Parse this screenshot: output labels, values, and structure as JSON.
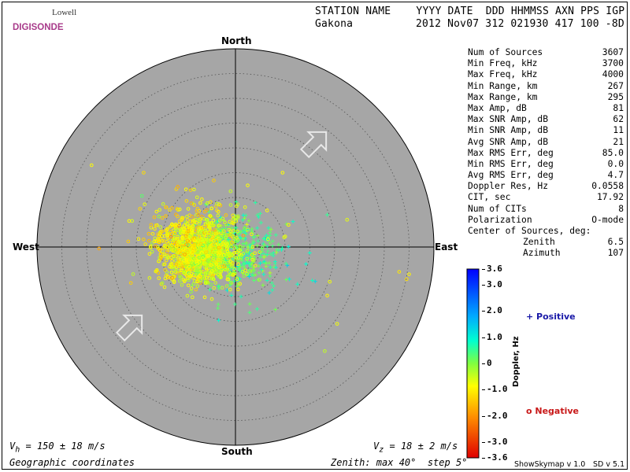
{
  "logo": {
    "line1": "Lowell",
    "line2": "DIGISONDE"
  },
  "header": {
    "labels": "STATION NAME    YYYY DATE  DDD HHMMSS AXN PPS IGP",
    "station": "Gakona",
    "values": "2012 Nov07 312 021930 417 100 -8D"
  },
  "directions": {
    "north": "North",
    "south": "South",
    "east": "East",
    "west": "West"
  },
  "stats": [
    {
      "label": "Num of Sources",
      "value": "3607"
    },
    {
      "label": "Min Freq, kHz",
      "value": "3700"
    },
    {
      "label": "Max Freq, kHz",
      "value": "4000"
    },
    {
      "label": "Min Range, km",
      "value": "267"
    },
    {
      "label": "Max Range, km",
      "value": "295"
    },
    {
      "label": "Max Amp, dB",
      "value": "81"
    },
    {
      "label": "Max SNR Amp, dB",
      "value": "62"
    },
    {
      "label": "Min SNR Amp, dB",
      "value": "11"
    },
    {
      "label": "Avg SNR Amp, dB",
      "value": "21"
    },
    {
      "label": "Max RMS Err, deg",
      "value": "85.0"
    },
    {
      "label": "Min RMS Err, deg",
      "value": "0.0"
    },
    {
      "label": "Avg RMS Err, deg",
      "value": "4.7"
    },
    {
      "label": "Doppler Res, Hz",
      "value": "0.0558"
    },
    {
      "label": "CIT, sec",
      "value": "17.92"
    },
    {
      "label": "Num of CITs",
      "value": "8"
    },
    {
      "label": "Polarization",
      "value": "O-mode"
    }
  ],
  "center": {
    "label": "Center of Sources, deg:",
    "zenith_label": "Zenith",
    "zenith_value": "6.5",
    "azimuth_label": "Azimuth",
    "azimuth_value": "107"
  },
  "colorbar": {
    "title": "Doppler, Hz",
    "ticks": [
      "3.6",
      "3.0",
      "2.0",
      "1.0",
      "0",
      "-1.0",
      "-2.0",
      "-3.0",
      "-3.6"
    ],
    "tick_values": [
      3.6,
      3.0,
      2.0,
      1.0,
      0,
      -1.0,
      -2.0,
      -3.0,
      -3.6
    ],
    "range": [
      -3.6,
      3.6
    ]
  },
  "legend": {
    "positive": "+ Positive",
    "negative": "o Negative"
  },
  "footer": {
    "vh": "V",
    "vh_sub": "h",
    "vh_rest": " = 150 ± 18 m/s",
    "vz": "V",
    "vz_sub": "z",
    "vz_rest": " = 18 ± 2 m/s",
    "coords": "Geographic coordinates",
    "zenith": "Zenith: max 40°  step 5°",
    "credit1": "ShowSkymap v 1.0",
    "credit2": "SD v 5.1"
  },
  "chart_data": {
    "type": "scatter",
    "coordinate_system": "polar",
    "zenith_max_deg": 40,
    "zenith_step_deg": 5,
    "center_of_sources": {
      "zenith_deg": 6.5,
      "azimuth_deg": 107
    },
    "series": [
      {
        "name": "Positive",
        "marker": "+",
        "clusters": [
          {
            "center_east_deg": -1.0,
            "center_north_deg": -0.5,
            "spread_deg": 4,
            "count": 220,
            "doppler_mean": 0.3
          },
          {
            "center_east_deg": 2.5,
            "center_north_deg": -2.0,
            "spread_deg": 5,
            "count": 150,
            "doppler_mean": 0.6
          },
          {
            "center_east_deg": -4.0,
            "center_north_deg": 1.5,
            "spread_deg": 3,
            "count": 60,
            "doppler_mean": -0.2
          }
        ]
      },
      {
        "name": "Negative",
        "marker": "o",
        "clusters": [
          {
            "center_east_deg": -9.0,
            "center_north_deg": -1.0,
            "spread_deg": 3.5,
            "count": 650,
            "doppler_mean": -1.0
          },
          {
            "center_east_deg": -5.0,
            "center_north_deg": -2.0,
            "spread_deg": 3.5,
            "count": 400,
            "doppler_mean": -0.6
          },
          {
            "center_east_deg": -11.0,
            "center_north_deg": 3.0,
            "spread_deg": 4.5,
            "count": 160,
            "doppler_mean": -1.2
          },
          {
            "center_east_deg": -3.0,
            "center_north_deg": 3.0,
            "spread_deg": 5,
            "count": 80,
            "doppler_mean": -0.8
          }
        ]
      }
    ],
    "outliers": [
      {
        "east_deg": -29.0,
        "north_deg": 16.5,
        "doppler": -1.0,
        "marker": "o"
      },
      {
        "east_deg": -18.5,
        "north_deg": 15.0,
        "doppler": -1.3,
        "marker": "o"
      },
      {
        "east_deg": -27.5,
        "north_deg": -0.3,
        "doppler": -1.8,
        "marker": "o"
      },
      {
        "east_deg": 19.0,
        "north_deg": -7.0,
        "doppler": -0.9,
        "marker": "o"
      },
      {
        "east_deg": 18.5,
        "north_deg": -9.8,
        "doppler": -1.1,
        "marker": "o"
      },
      {
        "east_deg": 33.0,
        "north_deg": -5.0,
        "doppler": -1.2,
        "marker": "o"
      },
      {
        "east_deg": 34.5,
        "north_deg": -6.5,
        "doppler": -1.3,
        "marker": "o"
      },
      {
        "east_deg": 35.0,
        "north_deg": -5.5,
        "doppler": -1.1,
        "marker": "o"
      },
      {
        "east_deg": 22.5,
        "north_deg": 5.5,
        "doppler": -0.8,
        "marker": "o"
      },
      {
        "east_deg": 20.5,
        "north_deg": -15.5,
        "doppler": -0.9,
        "marker": "o"
      },
      {
        "east_deg": 18.0,
        "north_deg": -21.0,
        "doppler": -0.5,
        "marker": "o"
      },
      {
        "east_deg": 9.5,
        "north_deg": 15.0,
        "doppler": -1.0,
        "marker": "o"
      },
      {
        "east_deg": 18.5,
        "north_deg": 6.5,
        "doppler": 0.6,
        "marker": "+"
      },
      {
        "east_deg": 12.5,
        "north_deg": -7.5,
        "doppler": 0.9,
        "marker": "+"
      }
    ],
    "doppler_colorscale": {
      "min": -3.6,
      "max": 3.6,
      "title": "Doppler, Hz"
    }
  }
}
